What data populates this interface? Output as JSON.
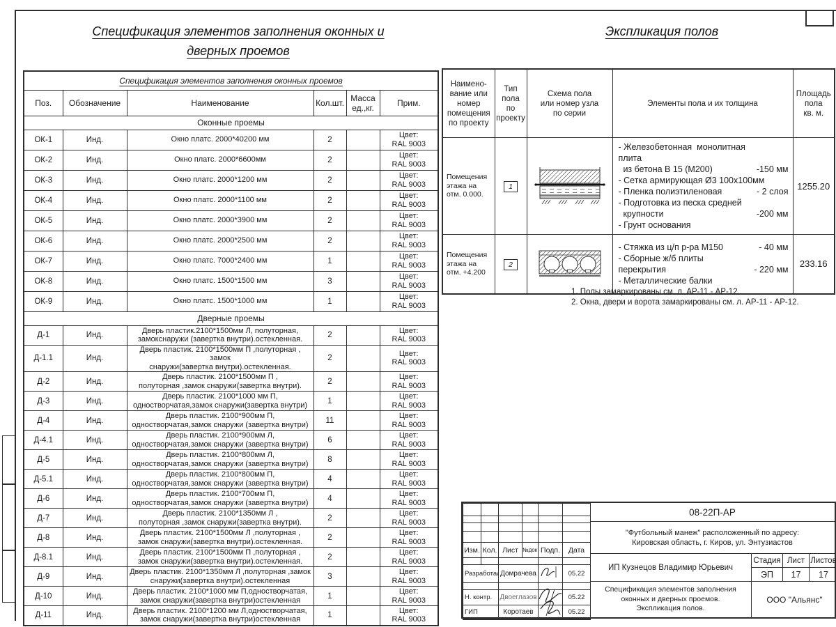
{
  "ink_color": "#1c1c1c",
  "titles": {
    "main_line1": "Спецификация элементов заполнения оконных и",
    "main_line2": "дверных проемов",
    "right": "Экспликация полов"
  },
  "spec_table": {
    "title": "Спецификация элементов заполнения оконных проемов",
    "headers": [
      "Поз.",
      "Обозначение",
      "Наименование",
      "Кол.шт.",
      "Масса\nед.,кг.",
      "Прим."
    ],
    "sections": [
      {
        "label": "Оконные проемы",
        "kind": "windows",
        "rows": [
          {
            "pos": "ОК-1",
            "designation": "Инд.",
            "name": "Окно платс. 2000*40200 мм",
            "qty": "2",
            "mass": "",
            "note": "Цвет:\nRAL 9003"
          },
          {
            "pos": "ОК-2",
            "designation": "Инд.",
            "name": "Окно платс. 2000*6600мм",
            "qty": "2",
            "mass": "",
            "note": "Цвет:\nRAL 9003"
          },
          {
            "pos": "ОК-3",
            "designation": "Инд.",
            "name": "Окно платс. 2000*1200 мм",
            "qty": "2",
            "mass": "",
            "note": "Цвет:\nRAL 9003"
          },
          {
            "pos": "ОК-4",
            "designation": "Инд.",
            "name": "Окно платс. 2000*1100 мм",
            "qty": "2",
            "mass": "",
            "note": "Цвет:\nRAL 9003"
          },
          {
            "pos": "ОК-5",
            "designation": "Инд.",
            "name": "Окно платс. 2000*3900 мм",
            "qty": "2",
            "mass": "",
            "note": "Цвет:\nRAL 9003"
          },
          {
            "pos": "ОК-6",
            "designation": "Инд.",
            "name": "Окно платс. 2000*2500 мм",
            "qty": "2",
            "mass": "",
            "note": "Цвет:\nRAL 9003"
          },
          {
            "pos": "ОК-7",
            "designation": "Инд.",
            "name": "Окно платс. 7000*2400 мм",
            "qty": "1",
            "mass": "",
            "note": "Цвет:\nRAL 9003"
          },
          {
            "pos": "ОК-8",
            "designation": "Инд.",
            "name": "Окно платс. 1500*1500 мм",
            "qty": "3",
            "mass": "",
            "note": "Цвет:\nRAL 9003"
          },
          {
            "pos": "ОК-9",
            "designation": "Инд.",
            "name": "Окно платс. 1500*1000 мм",
            "qty": "1",
            "mass": "",
            "note": "Цвет:\nRAL 9003"
          }
        ]
      },
      {
        "label": "Дверные проемы",
        "kind": "doors",
        "rows": [
          {
            "pos": "Д-1",
            "designation": "Инд.",
            "name": "Дверь пластик.2100*1500мм Л, полуторная,\nзамокснаружи (завертка внутри).остекленная.",
            "qty": "2",
            "mass": "",
            "note": "Цвет:\nRAL 9003"
          },
          {
            "pos": "Д-1.1",
            "designation": "Инд.",
            "name": "Дверь пластик. 2100*1500мм П ,полуторная , замок\nснаружи(завертка внутри).остекленная.",
            "qty": "2",
            "mass": "",
            "note": "Цвет:\nRAL 9003"
          },
          {
            "pos": "Д-2",
            "designation": "Инд.",
            "name": "Дверь пластик. 2100*1500мм П ,\nполуторная ,замок снаружи(завертка внутри).",
            "qty": "2",
            "mass": "",
            "note": "Цвет:\nRAL 9003"
          },
          {
            "pos": "Д-3",
            "designation": "Инд.",
            "name": "Дверь пластик. 2100*1000 мм П,\nодностворчатая,замок снаружи(завертка внутри)",
            "qty": "1",
            "mass": "",
            "note": "Цвет:\nRAL 9003"
          },
          {
            "pos": "Д-4",
            "designation": "Инд.",
            "name": "Дверь пластик. 2100*900мм П,\nодностворчатая,замок снаружи (завертка внутри)",
            "qty": "11",
            "mass": "",
            "note": "Цвет:\nRAL 9003"
          },
          {
            "pos": "Д-4.1",
            "designation": "Инд.",
            "name": "Дверь пластик. 2100*900мм Л,\nодностворчатая,замок снаружи (завертка внутри)",
            "qty": "6",
            "mass": "",
            "note": "Цвет:\nRAL 9003"
          },
          {
            "pos": "Д-5",
            "designation": "Инд.",
            "name": "Дверь пластик. 2100*800мм Л,\nодностворчатая,замок снаружи (завертка внутри)",
            "qty": "8",
            "mass": "",
            "note": "Цвет:\nRAL 9003"
          },
          {
            "pos": "Д-5.1",
            "designation": "Инд.",
            "name": "Дверь пластик. 2100*800мм П,\nодностворчатая,замок снаружи (завертка внутри)",
            "qty": "4",
            "mass": "",
            "note": "Цвет:\nRAL 9003"
          },
          {
            "pos": "Д-6",
            "designation": "Инд.",
            "name": "Дверь пластик. 2100*700мм П,\nодностворчатая,замок снаружи (завертка внутри)",
            "qty": "4",
            "mass": "",
            "note": "Цвет:\nRAL 9003"
          },
          {
            "pos": "Д-7",
            "designation": "Инд.",
            "name": "Дверь пластик. 2100*1350мм Л ,\nполуторная ,замок снаружи(завертка внутри).",
            "qty": "2",
            "mass": "",
            "note": "Цвет:\nRAL 9003"
          },
          {
            "pos": "Д-8",
            "designation": "Инд.",
            "name": "Дверь пластик. 2100*1500мм Л ,полуторная ,\nзамок снаружи(завертка внутри).остекленная.",
            "qty": "2",
            "mass": "",
            "note": "Цвет:\nRAL 9003"
          },
          {
            "pos": "Д-8.1",
            "designation": "Инд.",
            "name": "Дверь пластик. 2100*1500мм П ,полуторная ,\nзамок снаружи(завертка внутри).остекленная.",
            "qty": "2",
            "mass": "",
            "note": "Цвет:\nRAL 9003"
          },
          {
            "pos": "Д-9",
            "designation": "Инд.",
            "name": "Дверь пластик. 2100*1350мм Л ,полуторная ,замок\nснаружи(завертка внутри).остекленная",
            "qty": "3",
            "mass": "",
            "note": "Цвет:\nRAL 9003"
          },
          {
            "pos": "Д-10",
            "designation": "Инд.",
            "name": "Дверь пластик. 2100*1000 мм П,одностворчатая,\nзамок снаружи(завертка внутри)остекленная",
            "qty": "1",
            "mass": "",
            "note": "Цвет:\nRAL 9003"
          },
          {
            "pos": "Д-11",
            "designation": "Инд.",
            "name": "Дверь пластик. 2100*1200 мм Л,одностворчатая,\nзамок снаружи(завертка внутри)остекленная",
            "qty": "1",
            "mass": "",
            "note": "Цвет:\nRAL 9003"
          }
        ]
      }
    ]
  },
  "floor_table": {
    "headers": [
      "Наимено-\nвание или\nномер\nпомещения\nпо проекту",
      "Тип\nпола\nпо\nпроекту",
      "Схема пола\nили номер узла\nпо серии",
      "Элементы пола и их толщина",
      "Площадь\nпола\nкв. м."
    ],
    "rows": [
      {
        "room": "Помещения\nэтажа на\nотм. 0.000.",
        "type": "1",
        "schema": "slab-on-grade",
        "elements": [
          {
            "t": "- Железобетонная  монолитная плита\n  из бетона В 15 (М200)",
            "v": "-150 мм"
          },
          {
            "t": "- Сетка армирующая Ø3 100х100мм",
            "v": ""
          },
          {
            "t": "- Пленка полиэтиленовая",
            "v": "- 2 слоя"
          },
          {
            "t": "- Подготовка из песка средней\n  крупности",
            "v": "-200 мм"
          },
          {
            "t": "- Грунт основания",
            "v": ""
          }
        ],
        "area": "1255.20"
      },
      {
        "room": "Помещения\nэтажа на\nотм. +4.200",
        "type": "2",
        "schema": "hollow-core",
        "elements": [
          {
            "t": "- Стяжка из ц/п р-ра М150",
            "v": "- 40 мм"
          },
          {
            "t": "- Сборные ж/б плиты перекрытия",
            "v": "- 220 мм"
          },
          {
            "t": "- Металлические балки",
            "v": ""
          }
        ],
        "area": "233.16"
      }
    ]
  },
  "notes": [
    "1. Полы замаркированы см. л. АР-11 - АР-12.",
    "2. Окна, двери и ворота замаркированы см. л.  АР-11 - АР-12."
  ],
  "title_block": {
    "doc_number": "08-22П-АР",
    "object_address": "\"Футбольный манеж\" расположенный по адресу:\nКировская область, г. Киров, ул. Энтузиастов",
    "header_cols": [
      "Изм.",
      "Кол.",
      "Лист",
      "№док.",
      "Подп.",
      "Дата"
    ],
    "rows": [
      {
        "role": "Разработал",
        "name": "Домрачева",
        "date": "05.22"
      },
      {
        "role": "Н. контр.",
        "name": "Двоеглазов",
        "date": "05.22"
      },
      {
        "role": "ГИП",
        "name": "Коротаев",
        "date": "05.22"
      }
    ],
    "customer": "ИП Кузнецов Владимир Юрьевич",
    "stage_label": "Стадия",
    "sheet_label": "Лист",
    "sheets_label": "Листов",
    "stage": "ЭП",
    "sheet": "17",
    "sheets": "17",
    "doc_title": "Спецификация элементов заполнения\nоконных и дверных проемов.\nЭкспликация полов.",
    "org": "ООО \"Альянс\""
  }
}
